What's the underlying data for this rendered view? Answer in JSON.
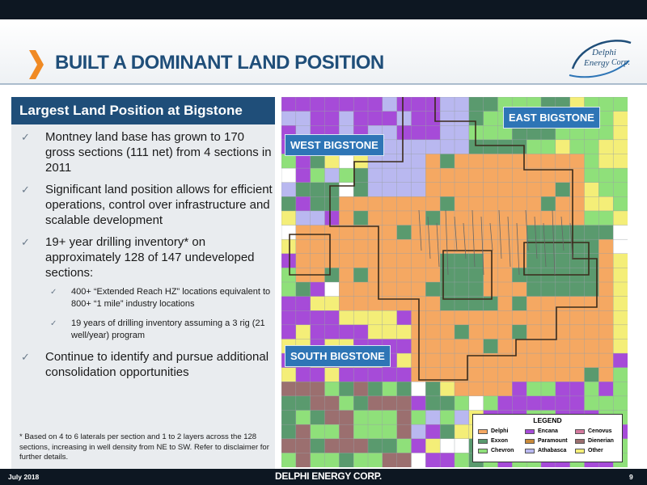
{
  "header": {
    "title": "BUILT A DOMINANT LAND POSITION",
    "logo_text_top": "Delphi",
    "logo_text_mid": "Energy",
    "logo_text_right": "Corp."
  },
  "panel": {
    "heading": "Largest Land Position at Bigstone",
    "bullets": [
      "Montney land base has grown to 170 gross sections (111 net) from 4 sections in 2011",
      "Significant land position allows for efficient operations, control over infrastructure and scalable development",
      "19+ year drilling inventory* on approximately 128 of 147 undeveloped sections:"
    ],
    "sub_bullets": [
      "400+ “Extended Reach HZ” locations equivalent to 800+ “1 mile” industry locations",
      "19 years of drilling inventory assuming a 3 rig (21 well/year) program"
    ],
    "last_bullet": "Continue to identify and pursue additional consolidation opportunities",
    "check_glyph": "✓",
    "footnote": "* Based on 4 to 6 laterals per section and 1 to 2 layers across the 128 sections, increasing in well density from NE to SW. Refer to disclaimer for further details."
  },
  "map": {
    "region_labels": {
      "east": "EAST BIGSTONE",
      "west": "WEST BIGSTONE",
      "south": "SOUTH BIGSTONE"
    },
    "legend": {
      "title": "LEGEND",
      "items": [
        {
          "label": "Delphi",
          "color": "#f5a862"
        },
        {
          "label": "Encana",
          "color": "#a64bd8"
        },
        {
          "label": "Cenovus",
          "color": "#d47a9e"
        },
        {
          "label": "Exxon",
          "color": "#5a9a6e"
        },
        {
          "label": "Paramount",
          "color": "#c98a3a"
        },
        {
          "label": "Dienerian",
          "color": "#9b6f6f"
        },
        {
          "label": "Chevron",
          "color": "#8fe07a"
        },
        {
          "label": "Athabasca",
          "color": "#b9b8f0"
        },
        {
          "label": "Other",
          "color": "#f4ee78"
        }
      ]
    }
  },
  "footer": {
    "date": "July 2018",
    "brand": "DELPHI ENERGY CORP.",
    "page": "9"
  },
  "colors": {
    "brand_blue": "#1f4e79",
    "label_blue": "#2e75b6",
    "accent_orange": "#f08a24",
    "bar_dark": "#0d1722"
  }
}
